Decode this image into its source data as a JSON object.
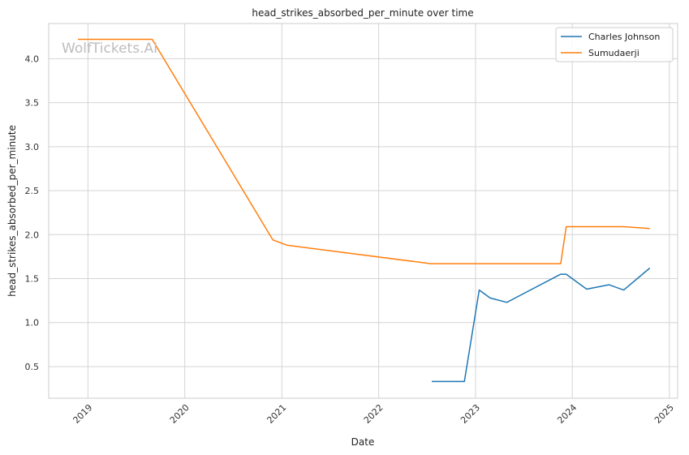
{
  "chart_data": {
    "type": "line",
    "title": "head_strikes_absorbed_per_minute over time",
    "xlabel": "Date",
    "ylabel": "head_strikes_absorbed_per_minute",
    "watermark": "WolfTickets.AI",
    "x_ticks": [
      "2019",
      "2020",
      "2021",
      "2022",
      "2023",
      "2024",
      "2025"
    ],
    "y_ticks": [
      "0.5",
      "1.0",
      "1.5",
      "2.0",
      "2.5",
      "3.0",
      "3.5",
      "4.0"
    ],
    "xlim": [
      "2018-08-06",
      "2025-02-01"
    ],
    "ylim": [
      0.14,
      4.4
    ],
    "grid": true,
    "legend_position": "top-right",
    "series": [
      {
        "name": "Charles Johnson",
        "color": "#1f77b4",
        "points": [
          {
            "x": "2022-07-20",
            "y": 0.33
          },
          {
            "x": "2022-11-20",
            "y": 0.33
          },
          {
            "x": "2023-01-15",
            "y": 1.37
          },
          {
            "x": "2023-02-25",
            "y": 1.28
          },
          {
            "x": "2023-04-29",
            "y": 1.23
          },
          {
            "x": "2023-11-18",
            "y": 1.55
          },
          {
            "x": "2023-12-09",
            "y": 1.55
          },
          {
            "x": "2024-02-24",
            "y": 1.38
          },
          {
            "x": "2024-05-18",
            "y": 1.43
          },
          {
            "x": "2024-07-13",
            "y": 1.37
          },
          {
            "x": "2024-10-19",
            "y": 1.62
          }
        ]
      },
      {
        "name": "Sumudaerji",
        "color": "#ff7f0e",
        "points": [
          {
            "x": "2018-11-24",
            "y": 4.22
          },
          {
            "x": "2019-08-31",
            "y": 4.22
          },
          {
            "x": "2020-11-28",
            "y": 1.94
          },
          {
            "x": "2021-01-20",
            "y": 1.88
          },
          {
            "x": "2022-07-16",
            "y": 1.67
          },
          {
            "x": "2023-11-18",
            "y": 1.67
          },
          {
            "x": "2023-12-09",
            "y": 2.09
          },
          {
            "x": "2024-07-13",
            "y": 2.09
          },
          {
            "x": "2024-10-19",
            "y": 2.07
          }
        ]
      }
    ]
  }
}
